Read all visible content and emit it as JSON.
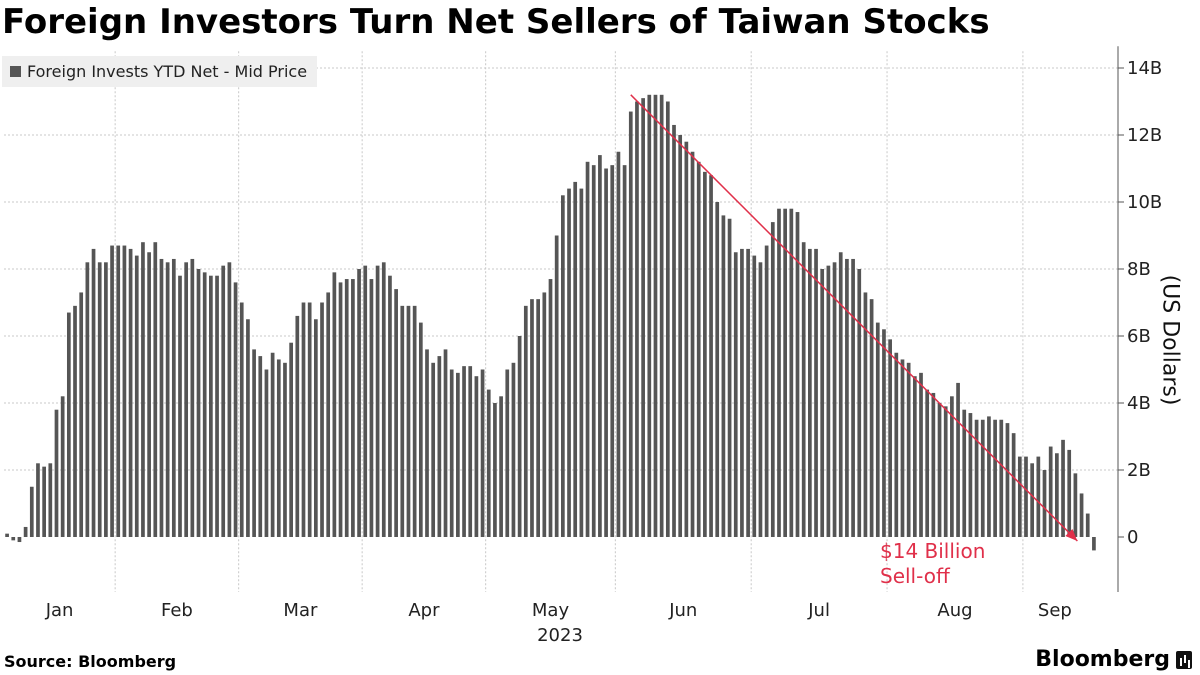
{
  "header": {
    "title": "Foreign Investors Turn Net Sellers of Taiwan Stocks"
  },
  "footer": {
    "source": "Source: Bloomberg",
    "brand": "Bloomberg"
  },
  "chart_data": {
    "type": "bar",
    "series": [
      {
        "name": "Foreign Invests YTD Net - Mid Price",
        "color": "#555555"
      }
    ],
    "y_axis": {
      "label": "(US Dollars)",
      "min": -1,
      "max": 14.5,
      "ticks": [
        0,
        2,
        4,
        6,
        8,
        10,
        12,
        14
      ],
      "tick_labels": [
        "0",
        "2B",
        "4B",
        "6B",
        "8B",
        "10B",
        "12B",
        "14B"
      ],
      "position": "right"
    },
    "x_axis": {
      "months": [
        "Jan",
        "Feb",
        "Mar",
        "Apr",
        "May",
        "Jun",
        "Jul",
        "Aug",
        "Sep"
      ],
      "year_label": "2023"
    },
    "grid": true,
    "legend_position": "top-left",
    "values": [
      0.1,
      -0.1,
      -0.15,
      0.3,
      1.5,
      2.2,
      2.1,
      2.2,
      3.8,
      4.2,
      6.7,
      6.9,
      7.3,
      8.2,
      8.6,
      8.2,
      8.2,
      8.7,
      8.7,
      8.7,
      8.6,
      8.4,
      8.8,
      8.5,
      8.8,
      8.3,
      8.2,
      8.3,
      7.8,
      8.2,
      8.3,
      8.0,
      7.9,
      7.8,
      7.8,
      8.1,
      8.2,
      7.6,
      7.0,
      6.5,
      5.6,
      5.4,
      5.0,
      5.5,
      5.3,
      5.2,
      5.8,
      6.6,
      7.0,
      7.0,
      6.5,
      7.0,
      7.3,
      7.9,
      7.6,
      7.7,
      7.7,
      8.0,
      8.1,
      7.7,
      8.1,
      8.2,
      7.8,
      7.4,
      6.9,
      6.9,
      6.9,
      6.4,
      5.6,
      5.2,
      5.4,
      5.6,
      5.0,
      4.9,
      5.1,
      5.1,
      4.8,
      5.0,
      4.4,
      4.0,
      4.2,
      5.0,
      5.2,
      6.0,
      6.9,
      7.1,
      7.1,
      7.3,
      7.7,
      9.0,
      10.2,
      10.4,
      10.6,
      10.4,
      11.2,
      11.1,
      11.4,
      11.0,
      11.1,
      11.5,
      11.1,
      12.7,
      13.0,
      13.1,
      13.2,
      13.2,
      13.2,
      13.0,
      12.3,
      12.0,
      11.8,
      11.5,
      11.2,
      10.9,
      10.8,
      10.0,
      9.6,
      9.5,
      8.5,
      8.6,
      8.6,
      8.4,
      8.2,
      8.7,
      9.4,
      9.8,
      9.8,
      9.8,
      9.7,
      8.8,
      8.6,
      8.6,
      8.0,
      8.1,
      8.2,
      8.5,
      8.3,
      8.3,
      8.0,
      7.3,
      7.1,
      6.4,
      6.2,
      5.9,
      5.5,
      5.3,
      5.2,
      4.8,
      4.9,
      4.4,
      4.3,
      4.0,
      3.9,
      4.2,
      4.6,
      3.8,
      3.7,
      3.5,
      3.5,
      3.6,
      3.5,
      3.5,
      3.4,
      3.1,
      2.4,
      2.4,
      2.2,
      2.4,
      2.0,
      2.7,
      2.5,
      2.9,
      2.6,
      1.9,
      1.3,
      0.7,
      -0.4
    ],
    "month_start_indices": [
      0,
      18,
      38,
      58,
      78,
      99,
      121,
      143,
      165
    ],
    "trend_line": {
      "from_index": 101,
      "from_value": 13.2,
      "to_index": 173,
      "to_value": 0.0,
      "color": "#e0304a"
    },
    "annotation": {
      "line1": "$14 Billion",
      "line2": "Sell-off",
      "color": "#e0304a"
    }
  }
}
